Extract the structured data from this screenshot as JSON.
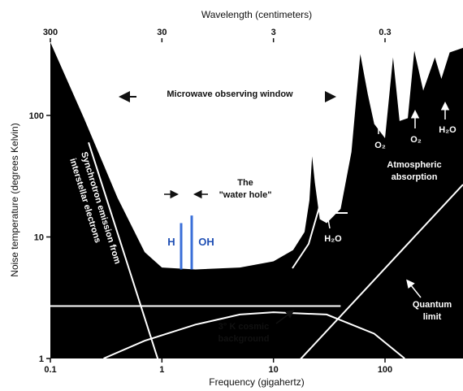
{
  "chart_data": {
    "type": "area",
    "title": "",
    "xlabel": "Frequency (gigahertz)",
    "ylabel": "Noise temperature (degrees Kelvin)",
    "top_axis_label": "Wavelength (centimeters)",
    "x_scale": "log",
    "y_scale": "log",
    "xlim": [
      0.1,
      500
    ],
    "ylim": [
      1,
      400
    ],
    "x_ticks": [
      "0.1",
      "1",
      "10",
      "100"
    ],
    "y_ticks": [
      "1",
      "10",
      "100"
    ],
    "top_ticks": [
      {
        "value": 0.1,
        "label": "300"
      },
      {
        "value": 1,
        "label": "30"
      },
      {
        "value": 10,
        "label": "3"
      },
      {
        "value": 100,
        "label": "0.3"
      }
    ],
    "sky_noise_curve": [
      {
        "x": 0.1,
        "y": 400
      },
      {
        "x": 0.2,
        "y": 95
      },
      {
        "x": 0.4,
        "y": 21
      },
      {
        "x": 0.7,
        "y": 7.5
      },
      {
        "x": 1.0,
        "y": 5.6
      },
      {
        "x": 2.0,
        "y": 5.4
      },
      {
        "x": 5.0,
        "y": 5.6
      },
      {
        "x": 10,
        "y": 6.3
      },
      {
        "x": 15,
        "y": 7.8
      },
      {
        "x": 19,
        "y": 11
      },
      {
        "x": 21,
        "y": 20
      },
      {
        "x": 22.2,
        "y": 46
      },
      {
        "x": 23.5,
        "y": 28
      },
      {
        "x": 26,
        "y": 14
      },
      {
        "x": 30,
        "y": 13
      },
      {
        "x": 40,
        "y": 17
      },
      {
        "x": 50,
        "y": 50
      },
      {
        "x": 60,
        "y": 320
      },
      {
        "x": 70,
        "y": 150
      },
      {
        "x": 80,
        "y": 85
      },
      {
        "x": 100,
        "y": 65
      },
      {
        "x": 118,
        "y": 300
      },
      {
        "x": 135,
        "y": 90
      },
      {
        "x": 160,
        "y": 95
      },
      {
        "x": 183,
        "y": 340
      },
      {
        "x": 220,
        "y": 160
      },
      {
        "x": 280,
        "y": 300
      },
      {
        "x": 320,
        "y": 200
      },
      {
        "x": 380,
        "y": 330
      },
      {
        "x": 500,
        "y": 360
      }
    ],
    "cmb_curve": [
      {
        "x": 0.3,
        "y": 1.0
      },
      {
        "x": 0.7,
        "y": 1.4
      },
      {
        "x": 2,
        "y": 1.9
      },
      {
        "x": 5,
        "y": 2.3
      },
      {
        "x": 10,
        "y": 2.4
      },
      {
        "x": 30,
        "y": 2.3
      },
      {
        "x": 80,
        "y": 1.6
      },
      {
        "x": 150,
        "y": 1.0
      }
    ],
    "quantum_limit": [
      {
        "x": 15,
        "y": 0.85
      },
      {
        "x": 500,
        "y": 27
      }
    ],
    "synchrotron_line": [
      {
        "x": 0.1,
        "y": 400
      },
      {
        "x": 0.95,
        "y": 0.9
      }
    ],
    "horizontal_level_y": 2.7,
    "markers": [
      {
        "label": "H",
        "x": 1.42,
        "y_top": 13,
        "y_bottom": 5.4
      },
      {
        "label": "OH",
        "x": 1.66,
        "y_top": 15,
        "y_bottom": 5.4
      }
    ],
    "window_range": [
      0.4,
      25
    ],
    "annotations": {
      "window": "Microwave observing window",
      "water_hole_1": "The",
      "water_hole_2": "\"water hole\"",
      "h": "H",
      "oh": "OH",
      "synchrotron_1": "Synchrotron emission from",
      "synchrotron_2": "interstellar electrons",
      "cmb_1": "3° K cosmic",
      "cmb_2": "background",
      "atmos_1": "Atmospheric",
      "atmos_2": "absorption",
      "quantum_1": "Quantum",
      "quantum_2": "limit",
      "h2o_22": "H₂O",
      "o2_60": "O₂",
      "o2_118": "O₂",
      "h2o_183": "H₂O"
    }
  }
}
